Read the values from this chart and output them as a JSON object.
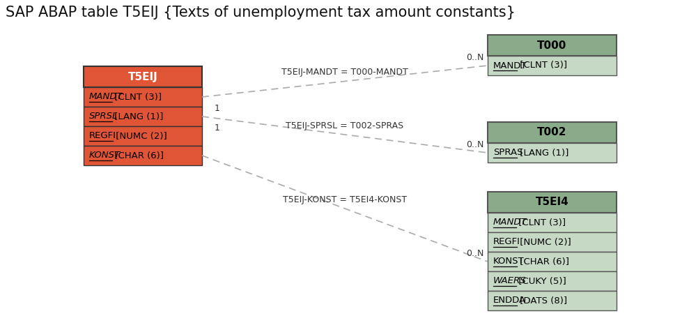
{
  "title": "SAP ABAP table T5EIJ {Texts of unemployment tax amount constants}",
  "title_fontsize": 15,
  "bg_color": "#ffffff",
  "main_table": {
    "name": "T5EIJ",
    "header_bg": "#e05535",
    "header_fg": "#ffffff",
    "field_bg": "#e05535",
    "field_fg": "#000000",
    "border_color": "#333333",
    "fields": [
      {
        "text": "MANDT",
        "type": " [CLNT (3)]",
        "italic": true,
        "underline": true
      },
      {
        "text": "SPRSL",
        "type": " [LANG (1)]",
        "italic": true,
        "underline": true
      },
      {
        "text": "REGFI",
        "type": " [NUMC (2)]",
        "italic": false,
        "underline": true
      },
      {
        "text": "KONST",
        "type": " [CHAR (6)]",
        "italic": true,
        "underline": true
      }
    ]
  },
  "t000": {
    "name": "T000",
    "header_bg": "#8aab8a",
    "header_fg": "#000000",
    "field_bg": "#c5d9c5",
    "field_fg": "#000000",
    "border_color": "#555555",
    "fields": [
      {
        "text": "MANDT",
        "type": " [CLNT (3)]",
        "italic": false,
        "underline": true
      }
    ]
  },
  "t002": {
    "name": "T002",
    "header_bg": "#8aab8a",
    "header_fg": "#000000",
    "field_bg": "#c5d9c5",
    "field_fg": "#000000",
    "border_color": "#555555",
    "fields": [
      {
        "text": "SPRAS",
        "type": " [LANG (1)]",
        "italic": false,
        "underline": true
      }
    ]
  },
  "t5ei4": {
    "name": "T5EI4",
    "header_bg": "#8aab8a",
    "header_fg": "#000000",
    "field_bg": "#c5d9c5",
    "field_fg": "#000000",
    "border_color": "#555555",
    "fields": [
      {
        "text": "MANDT",
        "type": " [CLNT (3)]",
        "italic": true,
        "underline": true
      },
      {
        "text": "REGFI",
        "type": " [NUMC (2)]",
        "italic": false,
        "underline": true
      },
      {
        "text": "KONST",
        "type": " [CHAR (6)]",
        "italic": false,
        "underline": true
      },
      {
        "text": "WAERS",
        "type": " [CUKY (5)]",
        "italic": true,
        "underline": true
      },
      {
        "text": "ENDDA",
        "type": " [DATS (8)]",
        "italic": false,
        "underline": true
      }
    ]
  },
  "conn_color": "#aaaaaa",
  "conn_label_color": "#333333",
  "conn_label_fontsize": 9
}
